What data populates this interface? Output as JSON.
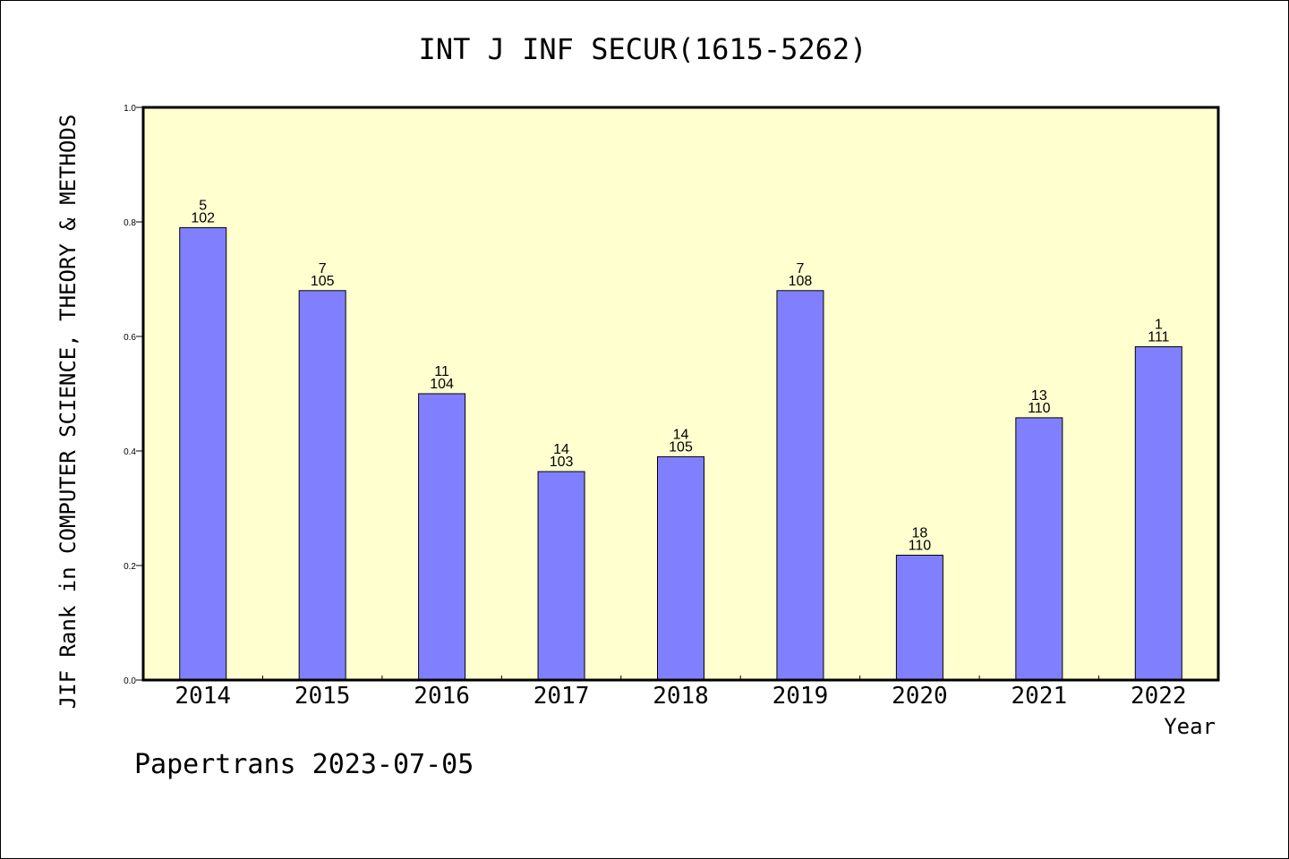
{
  "chart_data": {
    "type": "bar",
    "title": "INT J INF SECUR(1615-5262)",
    "xlabel": "Year",
    "ylabel": "JIF Rank in COMPUTER SCIENCE, THEORY & METHODS",
    "categories": [
      "2014",
      "2015",
      "2016",
      "2017",
      "2018",
      "2019",
      "2020",
      "2021",
      "2022"
    ],
    "values": [
      0.79,
      0.68,
      0.5,
      0.364,
      0.39,
      0.68,
      0.218,
      0.458,
      0.582
    ],
    "rank": [
      "5",
      "7",
      "11",
      "14",
      "14",
      "7",
      "18",
      "13",
      "1"
    ],
    "total": [
      "102",
      "105",
      "104",
      "103",
      "105",
      "108",
      "110",
      "110",
      "111"
    ],
    "ylim": [
      0,
      1.0
    ],
    "yticks": [
      "0.0",
      "0.2",
      "0.4",
      "0.6",
      "0.8",
      "1.0"
    ],
    "grid": false,
    "colors": {
      "bar": "#8080ff",
      "plot_bg": "#ffffd0"
    }
  },
  "footer": "Papertrans 2023-07-05"
}
